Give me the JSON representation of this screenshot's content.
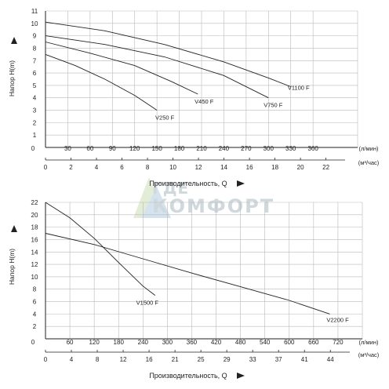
{
  "watermark": {
    "line1": "ГДЕ",
    "line2": "КОМФОРТ"
  },
  "chart_data": [
    {
      "type": "line",
      "ylabel": "Напор H(m)",
      "xlabel": "Производительность, Q",
      "x_unit_top": "(л/мин)",
      "x_unit_bottom": "(м³/час)",
      "yticks": [
        1,
        2,
        3,
        4,
        5,
        6,
        7,
        8,
        9,
        10,
        11
      ],
      "ylim": [
        0,
        11
      ],
      "x_lmin_ticks": [
        30,
        60,
        90,
        120,
        150,
        180,
        210,
        240,
        270,
        300,
        330,
        360
      ],
      "xlim_lmin": [
        0,
        420
      ],
      "x_m3h_ticks": [
        0,
        2,
        4,
        6,
        8,
        10,
        12,
        14,
        16,
        18,
        20,
        22
      ],
      "origin_label": "0",
      "grid": true,
      "series": [
        {
          "name": "V250 F",
          "x": [
            0,
            40,
            80,
            120,
            150
          ],
          "y": [
            7.5,
            6.6,
            5.5,
            4.2,
            3.0
          ]
        },
        {
          "name": "V450 F",
          "x": [
            0,
            60,
            120,
            170,
            205
          ],
          "y": [
            8.5,
            7.6,
            6.6,
            5.3,
            4.3
          ]
        },
        {
          "name": "V750 F",
          "x": [
            0,
            80,
            160,
            240,
            300
          ],
          "y": [
            9.0,
            8.3,
            7.3,
            5.8,
            4.0
          ]
        },
        {
          "name": "V1100 F",
          "x": [
            0,
            80,
            160,
            240,
            300,
            330
          ],
          "y": [
            10.1,
            9.4,
            8.3,
            6.9,
            5.6,
            4.9
          ]
        }
      ]
    },
    {
      "type": "line",
      "ylabel": "Напор H(m)",
      "xlabel": "Производительность, Q",
      "x_unit_top": "(л/мин)",
      "x_unit_bottom": "(м³/час)",
      "yticks": [
        2,
        4,
        6,
        8,
        10,
        12,
        14,
        16,
        18,
        20,
        22
      ],
      "ylim": [
        0,
        22
      ],
      "x_lmin_ticks": [
        60,
        120,
        180,
        240,
        300,
        360,
        420,
        480,
        540,
        600,
        660,
        720
      ],
      "xlim_lmin": [
        0,
        780
      ],
      "x_m3h_ticks": [
        0,
        4,
        8,
        12,
        16,
        21,
        25,
        29,
        33,
        37,
        41,
        44
      ],
      "origin_label": "0",
      "grid": true,
      "series": [
        {
          "name": "V1500 F",
          "x": [
            0,
            60,
            120,
            180,
            240,
            270
          ],
          "y": [
            22,
            19.5,
            16.2,
            12.3,
            8.5,
            7.0
          ]
        },
        {
          "name": "V2200 F",
          "x": [
            0,
            120,
            240,
            360,
            480,
            600,
            700
          ],
          "y": [
            17,
            15.2,
            12.9,
            10.6,
            8.4,
            6.2,
            4.0
          ]
        }
      ]
    }
  ]
}
